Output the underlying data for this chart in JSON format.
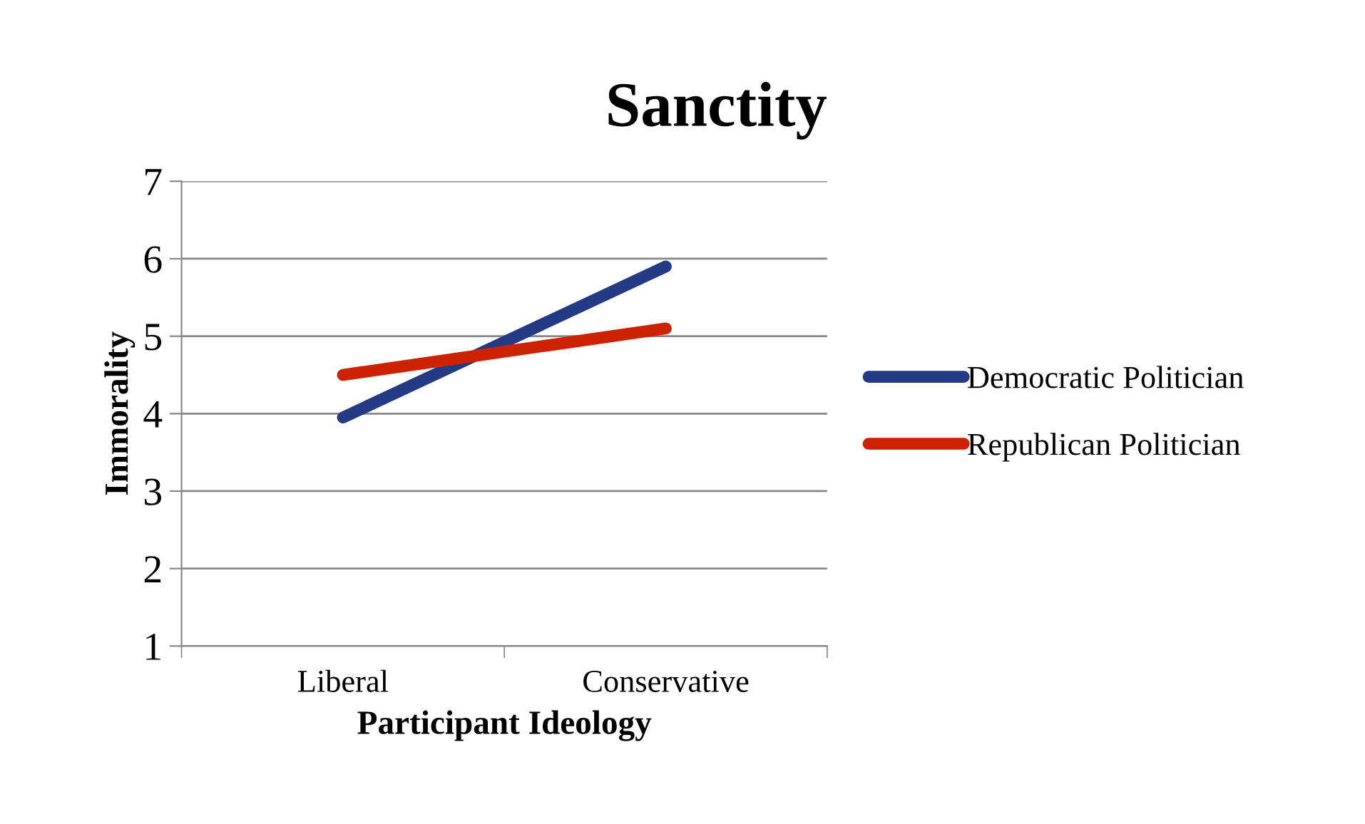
{
  "chart_data": {
    "type": "line",
    "title": "Sanctity",
    "xlabel": "Participant Ideology",
    "ylabel": "Immorality",
    "categories": [
      "Liberal",
      "Conservative"
    ],
    "series": [
      {
        "name": "Democratic Politician",
        "color": "#243a85",
        "values": [
          3.95,
          5.9
        ]
      },
      {
        "name": "Republican Politician",
        "color": "#cc2200",
        "values": [
          4.5,
          5.1
        ]
      }
    ],
    "ylim": [
      1,
      7
    ],
    "yticks": [
      1,
      2,
      3,
      4,
      5,
      6,
      7
    ],
    "grid": "y",
    "legend": "right",
    "marker": "none",
    "line_style": "solid"
  }
}
